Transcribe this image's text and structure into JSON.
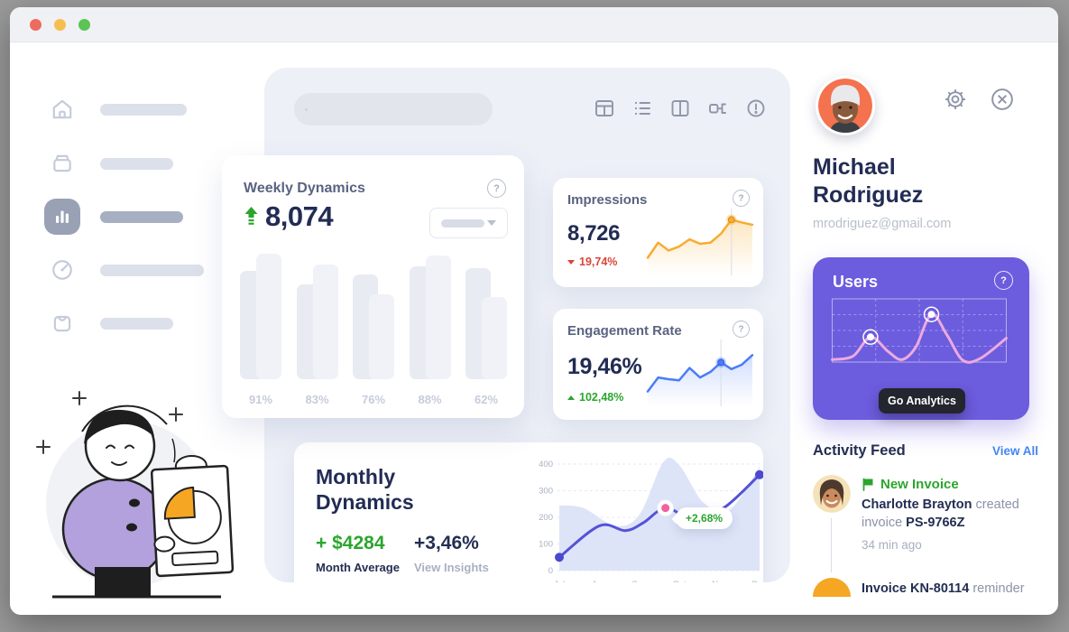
{
  "cards": {
    "weekly": {
      "title": "Weekly Dynamics",
      "value": "8,074"
    },
    "impressions": {
      "title": "Impressions",
      "value": "8,726",
      "delta": "19,74%"
    },
    "engagement": {
      "title": "Engagement Rate",
      "value": "19,46%",
      "delta": "102,48%"
    },
    "monthly": {
      "title": "Monthly Dynamics",
      "amount": "+ $4284",
      "amount_label": "Month Average",
      "percent": "+3,46%",
      "percent_label": "View Insights"
    }
  },
  "profile": {
    "name": "Michael Rodriguez",
    "email": "mrodriguez@gmail.com"
  },
  "users_card": {
    "title": "Users",
    "button_label": "Go Analytics"
  },
  "activity": {
    "title": "Activity Feed",
    "view_all": "View All",
    "items": [
      {
        "badge": "New Invoice",
        "actor": "Charlotte Brayton",
        "action": "created",
        "object_prefix": "invoice",
        "object_id": "PS-9766Z",
        "time": "34 min ago"
      },
      {
        "object_id": "Invoice KN-80114",
        "action": "reminder"
      }
    ]
  },
  "chart_data": [
    {
      "id": "weekly_bars",
      "type": "bar",
      "categories": [
        "91%",
        "83%",
        "76%",
        "88%",
        "62%"
      ],
      "series": [
        {
          "name": "back",
          "values": [
            99,
            91,
            67,
            98,
            65
          ]
        },
        {
          "name": "front",
          "values": [
            86,
            75,
            83,
            89,
            88
          ]
        }
      ],
      "ylim": [
        0,
        100
      ]
    },
    {
      "id": "impressions_spark",
      "type": "line",
      "values": [
        0.25,
        0.52,
        0.38,
        0.45,
        0.58,
        0.5,
        0.52,
        0.68,
        0.93,
        0.88,
        0.84
      ],
      "marker_index": 8
    },
    {
      "id": "engagement_spark",
      "type": "line",
      "values": [
        0.2,
        0.45,
        0.42,
        0.4,
        0.62,
        0.45,
        0.55,
        0.72,
        0.6,
        0.68,
        0.85
      ],
      "marker_index": 7
    },
    {
      "id": "monthly",
      "type": "area",
      "ylim": [
        0,
        400
      ],
      "yticks": [
        0,
        100,
        200,
        300,
        400
      ],
      "x_labels": [
        "Jul",
        "Aug",
        "Sep",
        "Oct",
        "Nov",
        "Dec"
      ],
      "line": [
        {
          "x": 0,
          "v": 50
        },
        {
          "x": 0.2,
          "v": 168
        },
        {
          "x": 0.33,
          "v": 150
        },
        {
          "x": 0.42,
          "v": 180
        },
        {
          "x": 0.53,
          "v": 235
        },
        {
          "x": 0.66,
          "v": 198
        },
        {
          "x": 0.82,
          "v": 235
        },
        {
          "x": 1,
          "v": 360
        }
      ],
      "area": [
        {
          "x": 0,
          "v": 245
        },
        {
          "x": 0.12,
          "v": 235
        },
        {
          "x": 0.28,
          "v": 168
        },
        {
          "x": 0.4,
          "v": 210
        },
        {
          "x": 0.52,
          "v": 408
        },
        {
          "x": 0.6,
          "v": 395
        },
        {
          "x": 0.72,
          "v": 255
        },
        {
          "x": 0.85,
          "v": 228
        },
        {
          "x": 1,
          "v": 390
        }
      ],
      "highlight": {
        "x": 0.53,
        "v": 235,
        "label": "+2,68%"
      }
    },
    {
      "id": "users_wave",
      "type": "line",
      "points": [
        {
          "x": 0,
          "y": 0.04
        },
        {
          "x": 0.12,
          "y": 0.1
        },
        {
          "x": 0.22,
          "y": 0.42
        },
        {
          "x": 0.32,
          "y": 0.18
        },
        {
          "x": 0.4,
          "y": 0.04
        },
        {
          "x": 0.48,
          "y": 0.25
        },
        {
          "x": 0.57,
          "y": 0.8
        },
        {
          "x": 0.66,
          "y": 0.45
        },
        {
          "x": 0.75,
          "y": 0.03
        },
        {
          "x": 0.85,
          "y": 0.06
        },
        {
          "x": 1,
          "y": 0.4
        }
      ],
      "marker_indices": [
        2,
        6
      ]
    }
  ],
  "colors": {
    "green": "#2BA52E",
    "red": "#DB4437",
    "navy": "#232E52",
    "orange": "#F8AC2F",
    "blue_line": "#4C7CF5",
    "purple_line": "#5452D8",
    "pink": "#F2629E",
    "card_purple": "#6C5CDE",
    "wave_pink": "#ECAADF",
    "link_blue": "#4285F4"
  }
}
